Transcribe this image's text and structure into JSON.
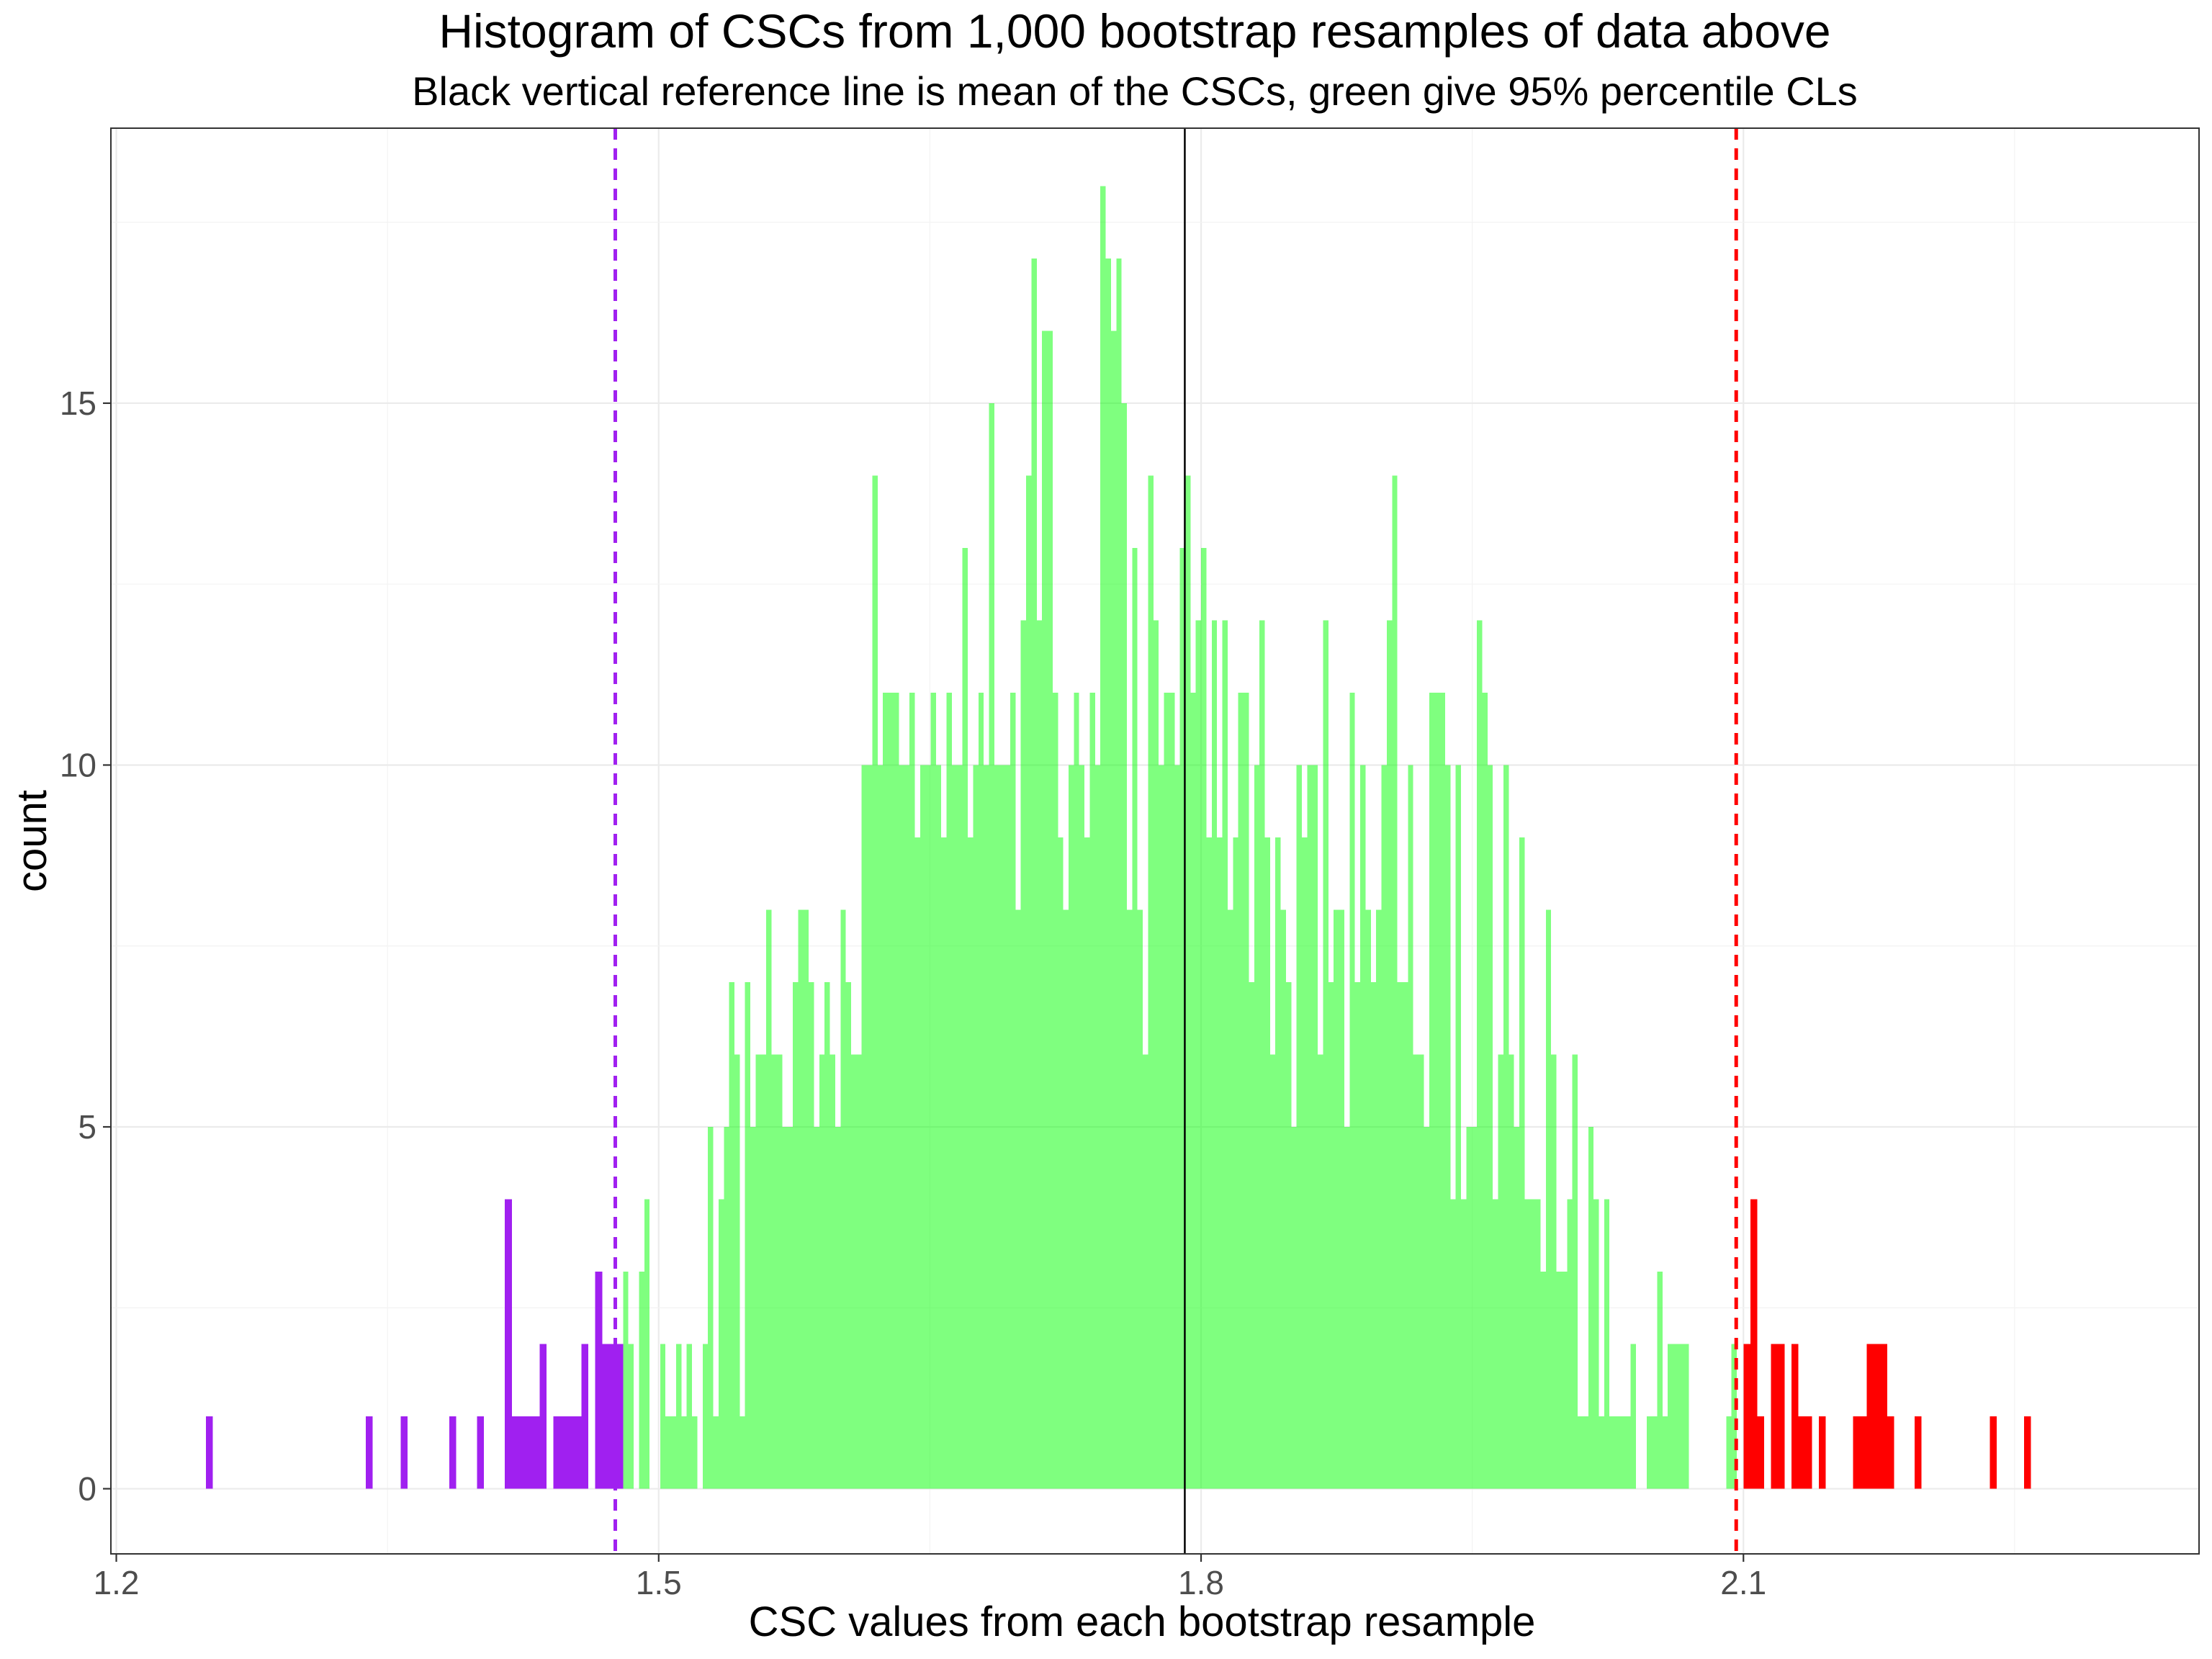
{
  "chart_data": {
    "type": "bar",
    "title": "Histogram of CSCs from 1,000 bootstrap resamples of data above",
    "subtitle": "Black vertical reference line is mean of the CSCs, green give 95% percentile CLs",
    "xlabel": "CSC values from each bootstrap resample",
    "ylabel": "count",
    "xlim": [
      1.197,
      2.352
    ],
    "ylim": [
      -0.9,
      18.8
    ],
    "x_ticks": [
      "1.2",
      "1.5",
      "1.8",
      "2.1"
    ],
    "x_tick_values": [
      1.2,
      1.5,
      1.8,
      2.1
    ],
    "y_ticks": [
      "0",
      "5",
      "10",
      "15"
    ],
    "y_tick_values": [
      0,
      5,
      10,
      15
    ],
    "grid": true,
    "bin_start": 1.2495,
    "bin_width": 0.0047,
    "series": [
      {
        "color": "#A020F0",
        "x_from": 1.2495,
        "x_to": 1.4803,
        "values": [
          1,
          0,
          0,
          0,
          0,
          0,
          0,
          0,
          0,
          0,
          0,
          0,
          0,
          0,
          0,
          0,
          0,
          0,
          0,
          0,
          0,
          0,
          0,
          1,
          0,
          0,
          0,
          0,
          1,
          0,
          0,
          0,
          0,
          0,
          0,
          1,
          0,
          0,
          0,
          1,
          0,
          0,
          0,
          4,
          1,
          1,
          1,
          1,
          2,
          0,
          1,
          1,
          1,
          1,
          2,
          0,
          3,
          2,
          2,
          2
        ]
      },
      {
        "color": "#00FF00",
        "opacity": 0.5,
        "x_from": 1.4803,
        "x_to": 2.0963,
        "values": [
          3,
          2,
          0,
          3,
          4,
          0,
          0,
          2,
          1,
          1,
          2,
          1,
          2,
          1,
          0,
          2,
          5,
          1,
          4,
          5,
          7,
          6,
          1,
          7,
          5,
          6,
          6,
          8,
          6,
          6,
          5,
          5,
          7,
          8,
          8,
          7,
          5,
          6,
          7,
          6,
          5,
          8,
          7,
          6,
          6,
          10,
          10,
          14,
          10,
          11,
          11,
          11,
          10,
          10,
          11,
          9,
          10,
          10,
          11,
          10,
          9,
          11,
          10,
          10,
          13,
          9,
          10,
          11,
          10,
          15,
          10,
          10,
          10,
          11,
          8,
          12,
          14,
          17,
          12,
          16,
          16,
          11,
          9,
          8,
          10,
          11,
          10,
          9,
          11,
          10,
          18,
          17,
          16,
          17,
          15,
          8,
          13,
          8,
          6,
          14,
          12,
          10,
          11,
          11,
          10,
          13,
          14,
          11,
          12,
          13,
          9,
          12,
          9,
          12,
          8,
          9,
          11,
          11,
          7,
          10,
          12,
          9,
          6,
          9,
          8,
          7,
          5,
          10,
          9,
          10,
          10,
          6,
          12,
          7,
          8,
          8,
          5,
          11,
          7,
          10,
          8,
          7,
          8,
          10,
          12,
          14,
          7,
          7,
          10,
          6,
          6,
          5,
          11,
          11,
          11,
          10,
          4,
          10,
          4,
          5,
          5,
          12,
          11,
          10,
          4,
          6,
          10,
          6,
          5,
          9,
          4,
          4,
          4,
          3,
          8,
          6,
          3,
          3,
          4,
          6,
          1,
          1,
          5,
          4,
          1,
          4,
          1,
          1,
          1,
          1,
          2,
          0,
          0,
          1,
          1,
          3,
          1,
          2,
          2,
          2,
          2,
          0,
          0,
          0,
          0,
          0,
          0,
          0,
          1,
          2
        ]
      },
      {
        "color": "#FF0000",
        "x_from": 2.0963,
        "x_to": 2.3043,
        "values": [
          0,
          2,
          4,
          1,
          0,
          2,
          2,
          0,
          2,
          1,
          1,
          0,
          1,
          0,
          0,
          0,
          0,
          1,
          1,
          2,
          2,
          2,
          1,
          0,
          0,
          0,
          1,
          0,
          0,
          0,
          0,
          0,
          0,
          0,
          0,
          0,
          0,
          1,
          0,
          0,
          0,
          0,
          1,
          0,
          0,
          0,
          0,
          0,
          0,
          0,
          0,
          0,
          0,
          0,
          0
        ]
      }
    ],
    "reference_lines": [
      {
        "x": 1.476,
        "color": "#A020F0",
        "style": "dashed"
      },
      {
        "x": 1.791,
        "color": "#000000",
        "style": "solid"
      },
      {
        "x": 2.096,
        "color": "#FF0000",
        "style": "dashed"
      }
    ]
  }
}
